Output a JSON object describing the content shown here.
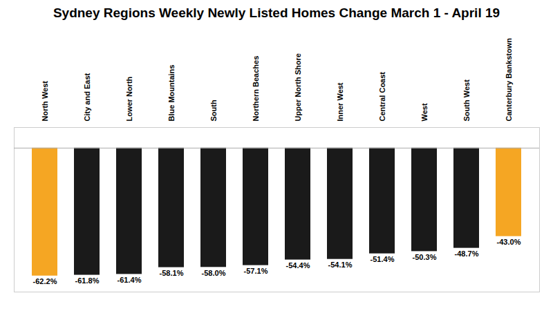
{
  "chart_data": {
    "type": "bar",
    "title": "Sydney Regions Weekly Newly Listed Homes Change March 1 - April 19",
    "categories": [
      "North West",
      "City and East",
      "Lower North",
      "Blue Mountains",
      "South",
      "Northern Beaches",
      "Upper North Shore",
      "Inner West",
      "Central Coast",
      "West",
      "South West",
      "Canterbury Bankstown"
    ],
    "values": [
      -62.2,
      -61.8,
      -61.4,
      -58.1,
      -58.0,
      -57.1,
      -54.4,
      -54.1,
      -51.4,
      -50.3,
      -48.7,
      -43.0
    ],
    "value_labels": [
      "-62.2%",
      "-61.8%",
      "-61.4%",
      "-58.1%",
      "-58.0%",
      "-57.1%",
      "-54.4%",
      "-54.1%",
      "-51.4%",
      "-50.3%",
      "-48.7%",
      "-43.0%"
    ],
    "colors": [
      "#F5A623",
      "#1a1a1a",
      "#1a1a1a",
      "#1a1a1a",
      "#1a1a1a",
      "#1a1a1a",
      "#1a1a1a",
      "#1a1a1a",
      "#1a1a1a",
      "#1a1a1a",
      "#1a1a1a",
      "#F5A623"
    ],
    "ylim": [
      -70,
      10
    ],
    "data_labels": true,
    "tick_labels": "x",
    "grid": false
  }
}
